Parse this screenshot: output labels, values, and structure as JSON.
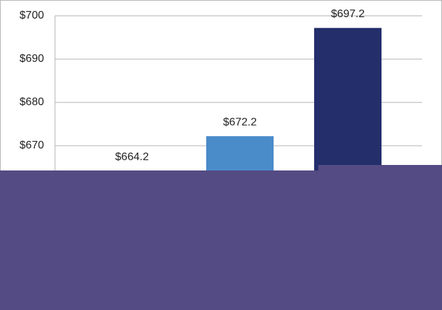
{
  "chart_data": {
    "type": "bar",
    "values": [
      664.2,
      672.2,
      697.2
    ],
    "value_labels": [
      "$664.2",
      "$672.2",
      "$697.2"
    ],
    "colors": [
      "#4a8bca",
      "#4a8bca",
      "#232e6b"
    ],
    "ylim": [
      640,
      700
    ],
    "yticks": [
      {
        "value": 670,
        "label": "$670"
      },
      {
        "value": 680,
        "label": "$680"
      },
      {
        "value": 690,
        "label": "$690"
      },
      {
        "value": 700,
        "label": "$700"
      }
    ],
    "grid": true
  }
}
